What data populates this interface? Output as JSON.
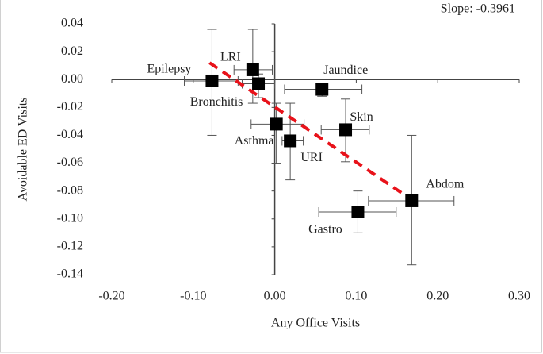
{
  "chart_data": {
    "type": "scatter",
    "annotation": "Slope: -0.3961",
    "x_label": "Any Office Visits",
    "y_label": "Avoidable ED Visits",
    "labels": [
      "Epilepsy",
      "LRI",
      "Bronchitis",
      "Jaundice",
      "Skin",
      "Asthma",
      "URI",
      "Gastro",
      "Abdom"
    ],
    "x": [
      -0.077,
      -0.027,
      -0.02,
      0.058,
      0.087,
      0.002,
      0.019,
      0.102,
      0.168
    ],
    "y": [
      -0.001,
      0.007,
      -0.003,
      -0.007,
      -0.036,
      -0.032,
      -0.044,
      -0.095,
      -0.087
    ],
    "x_low": [
      -0.111,
      -0.05,
      -0.04,
      0.012,
      0.057,
      -0.029,
      0.009,
      0.054,
      0.115
    ],
    "x_high": [
      -0.045,
      -0.003,
      0.0,
      0.107,
      0.116,
      0.036,
      0.035,
      0.149,
      0.22
    ],
    "y_low": [
      -0.04,
      -0.017,
      -0.013,
      -0.012,
      -0.059,
      -0.06,
      -0.072,
      -0.11,
      -0.133
    ],
    "y_high": [
      0.036,
      0.036,
      0.004,
      -0.004,
      -0.014,
      -0.017,
      -0.017,
      -0.08,
      -0.04
    ],
    "color": "#000000",
    "trendline": {
      "x": [
        -0.08,
        0.17
      ],
      "y": [
        0.012,
        -0.087
      ],
      "color": "#e8121a"
    },
    "xlim": [
      -0.2,
      0.3
    ],
    "ylim": [
      -0.14,
      0.04
    ],
    "xticks": [
      {
        "value": -0.2,
        "label": "-0.20"
      },
      {
        "value": -0.1,
        "label": "-0.10"
      },
      {
        "value": 0,
        "label": "0.00"
      },
      {
        "value": 0.1,
        "label": "0.10"
      },
      {
        "value": 0.2,
        "label": "0.20"
      },
      {
        "value": 0.3,
        "label": "0.30"
      }
    ],
    "yticks": [
      {
        "value": 0.04,
        "label": "0.04"
      },
      {
        "value": 0.02,
        "label": "0.02"
      },
      {
        "value": 0,
        "label": "0.00"
      },
      {
        "value": -0.02,
        "label": "-0.02"
      },
      {
        "value": -0.04,
        "label": "-0.04"
      },
      {
        "value": -0.06,
        "label": "-0.06"
      },
      {
        "value": -0.08,
        "label": "-0.08"
      },
      {
        "value": -0.1,
        "label": "-0.10"
      },
      {
        "value": -0.12,
        "label": "-0.12"
      },
      {
        "value": -0.14,
        "label": "-0.14"
      }
    ]
  }
}
